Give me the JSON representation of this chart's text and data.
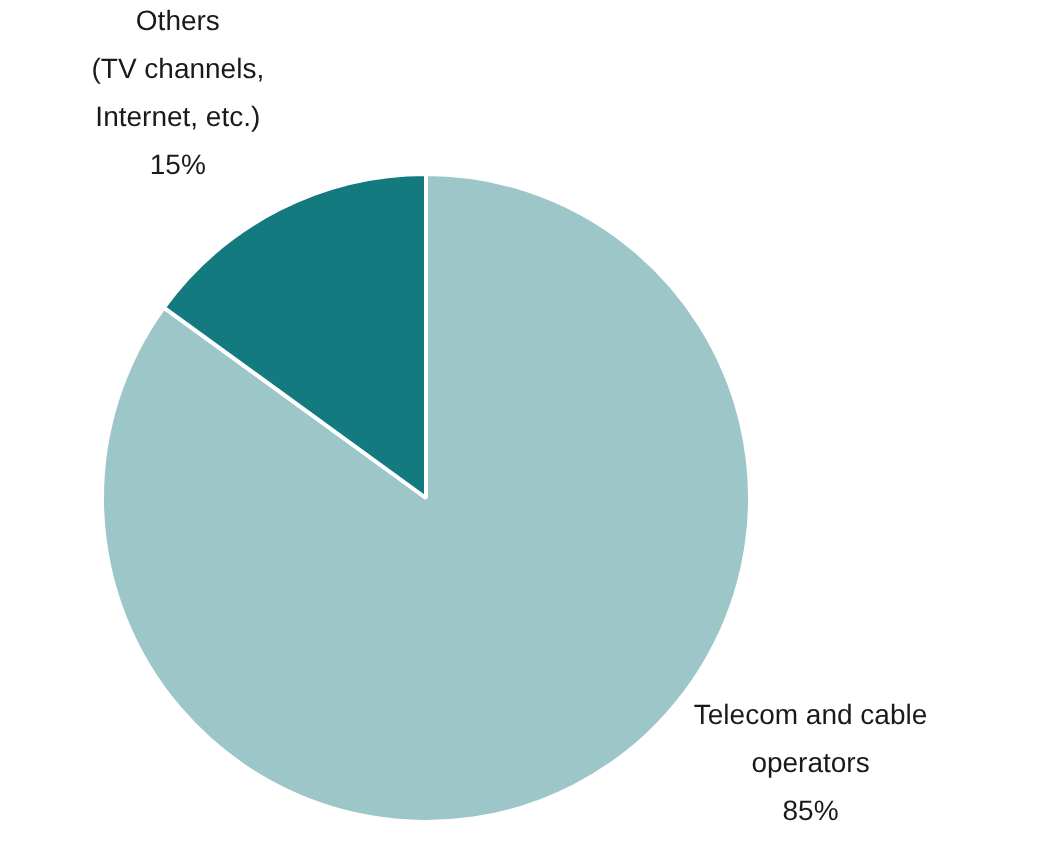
{
  "chart_data": {
    "type": "pie",
    "categories": [
      "Telecom and cable\noperators",
      "Others\n(TV channels,\nInternet, etc.)"
    ],
    "values": [
      85,
      15
    ],
    "colors": [
      "#9cc6c8",
      "#137b80"
    ],
    "value_labels": [
      "85%",
      "15%"
    ],
    "legend": false
  }
}
